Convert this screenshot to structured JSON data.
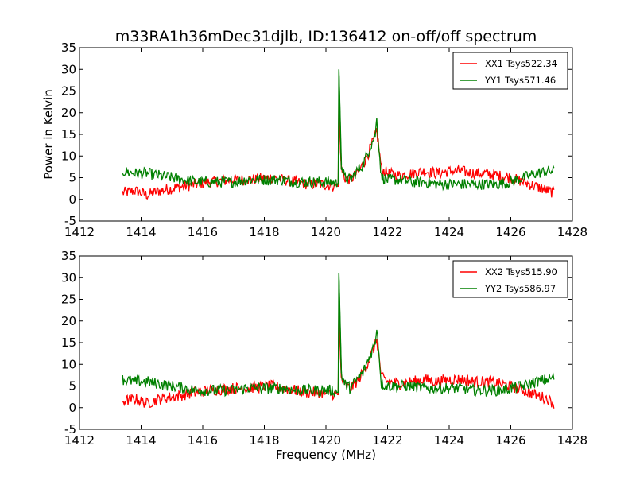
{
  "title": "m33RA1h36mDec31djlb, ID:136412 on-off/off spectrum",
  "chart_data": [
    {
      "type": "line",
      "ylabel": "Power in Kelvin",
      "xlabel": "",
      "xlim": [
        1412,
        1428
      ],
      "ylim": [
        -5,
        35
      ],
      "xticks": [
        1412,
        1414,
        1416,
        1418,
        1420,
        1422,
        1424,
        1426,
        1428
      ],
      "yticks": [
        -5,
        0,
        5,
        10,
        15,
        20,
        25,
        30,
        35
      ],
      "legend_position": "top-right",
      "series": [
        {
          "name": "XX1 Tsys522.34",
          "color": "#ff0000",
          "x": [
            1413.4,
            1413.8,
            1414.2,
            1414.6,
            1415.0,
            1415.4,
            1415.8,
            1416.2,
            1416.6,
            1417.0,
            1417.4,
            1417.8,
            1418.2,
            1418.6,
            1419.0,
            1419.4,
            1419.8,
            1420.2,
            1420.4,
            1420.42,
            1420.5,
            1420.6,
            1420.8,
            1421.0,
            1421.2,
            1421.4,
            1421.6,
            1421.65,
            1421.8,
            1422.0,
            1422.4,
            1422.8,
            1423.2,
            1423.6,
            1424.0,
            1424.4,
            1424.8,
            1425.2,
            1425.6,
            1426.0,
            1426.4,
            1426.8,
            1427.2,
            1427.4
          ],
          "values": [
            1.5,
            2.0,
            1.0,
            2.0,
            2.5,
            3.0,
            3.5,
            4.0,
            4.2,
            4.5,
            4.5,
            4.7,
            5.0,
            4.5,
            4.0,
            3.5,
            3.5,
            3.2,
            3.0,
            22.5,
            7.0,
            5.0,
            4.5,
            6.0,
            8.0,
            11.0,
            14.5,
            16.0,
            7.0,
            6.0,
            5.5,
            6.0,
            6.5,
            6.0,
            6.5,
            6.5,
            6.0,
            6.0,
            5.5,
            5.0,
            4.0,
            3.0,
            2.0,
            1.5
          ]
        },
        {
          "name": "YY1 Tsys571.46",
          "color": "#008000",
          "x": [
            1413.4,
            1413.8,
            1414.2,
            1414.6,
            1415.0,
            1415.4,
            1415.8,
            1416.2,
            1416.6,
            1417.0,
            1417.4,
            1417.8,
            1418.2,
            1418.6,
            1419.0,
            1419.4,
            1419.8,
            1420.2,
            1420.4,
            1420.42,
            1420.5,
            1420.6,
            1420.8,
            1421.0,
            1421.2,
            1421.4,
            1421.6,
            1421.65,
            1421.8,
            1422.0,
            1422.4,
            1422.8,
            1423.2,
            1423.6,
            1424.0,
            1424.4,
            1424.8,
            1425.2,
            1425.6,
            1426.0,
            1426.4,
            1426.8,
            1427.2,
            1427.4
          ],
          "values": [
            6.5,
            6.0,
            6.0,
            5.5,
            5.0,
            4.5,
            4.0,
            4.0,
            4.0,
            4.0,
            4.5,
            4.5,
            4.5,
            4.5,
            4.0,
            4.0,
            4.0,
            4.0,
            3.5,
            30.0,
            8.0,
            5.0,
            4.5,
            6.5,
            8.0,
            11.5,
            15.0,
            18.5,
            5.0,
            4.5,
            4.5,
            4.0,
            4.0,
            3.5,
            3.5,
            3.5,
            3.5,
            3.5,
            3.5,
            4.0,
            5.0,
            6.0,
            6.5,
            6.5
          ]
        }
      ]
    },
    {
      "type": "line",
      "ylabel": "",
      "xlabel": "Frequency (MHz)",
      "xlim": [
        1412,
        1428
      ],
      "ylim": [
        -5,
        35
      ],
      "xticks": [
        1412,
        1414,
        1416,
        1418,
        1420,
        1422,
        1424,
        1426,
        1428
      ],
      "yticks": [
        -5,
        0,
        5,
        10,
        15,
        20,
        25,
        30,
        35
      ],
      "legend_position": "top-right",
      "series": [
        {
          "name": "XX2 Tsys515.90",
          "color": "#ff0000",
          "x": [
            1413.4,
            1413.8,
            1414.2,
            1414.6,
            1415.0,
            1415.4,
            1415.8,
            1416.2,
            1416.6,
            1417.0,
            1417.4,
            1417.8,
            1418.2,
            1418.6,
            1419.0,
            1419.4,
            1419.8,
            1420.2,
            1420.4,
            1420.42,
            1420.5,
            1420.6,
            1420.8,
            1421.0,
            1421.2,
            1421.4,
            1421.6,
            1421.65,
            1421.8,
            1422.0,
            1422.4,
            1422.8,
            1423.2,
            1423.6,
            1424.0,
            1424.4,
            1424.8,
            1425.2,
            1425.6,
            1426.0,
            1426.4,
            1426.8,
            1427.2,
            1427.4
          ],
          "values": [
            1.5,
            2.0,
            1.0,
            2.0,
            2.5,
            3.0,
            3.5,
            4.0,
            4.2,
            4.5,
            4.5,
            4.7,
            5.0,
            4.5,
            4.0,
            3.5,
            3.5,
            3.2,
            3.0,
            22.5,
            7.0,
            5.0,
            4.5,
            6.0,
            8.0,
            11.0,
            14.5,
            16.0,
            7.0,
            6.0,
            5.5,
            6.0,
            6.5,
            6.0,
            6.5,
            6.5,
            6.0,
            6.0,
            5.5,
            5.0,
            4.0,
            3.0,
            2.0,
            1.0
          ]
        },
        {
          "name": "YY2 Tsys586.97",
          "color": "#008000",
          "x": [
            1413.4,
            1413.8,
            1414.2,
            1414.6,
            1415.0,
            1415.4,
            1415.8,
            1416.2,
            1416.6,
            1417.0,
            1417.4,
            1417.8,
            1418.2,
            1418.6,
            1419.0,
            1419.4,
            1419.8,
            1420.2,
            1420.4,
            1420.42,
            1420.5,
            1420.6,
            1420.8,
            1421.0,
            1421.2,
            1421.4,
            1421.6,
            1421.65,
            1421.8,
            1422.0,
            1422.4,
            1422.8,
            1423.2,
            1423.6,
            1424.0,
            1424.4,
            1424.8,
            1425.2,
            1425.6,
            1426.0,
            1426.4,
            1426.8,
            1427.2,
            1427.4
          ],
          "values": [
            6.5,
            6.0,
            6.0,
            5.5,
            5.0,
            4.5,
            4.0,
            4.0,
            4.0,
            4.0,
            4.5,
            4.5,
            4.5,
            4.5,
            4.0,
            4.0,
            4.0,
            4.0,
            3.5,
            31.0,
            8.0,
            5.5,
            4.5,
            6.5,
            8.0,
            11.5,
            15.0,
            19.0,
            5.5,
            5.0,
            5.0,
            5.0,
            4.5,
            4.5,
            4.5,
            4.5,
            4.0,
            4.0,
            4.0,
            4.5,
            5.0,
            6.0,
            6.5,
            7.0
          ]
        }
      ]
    }
  ]
}
